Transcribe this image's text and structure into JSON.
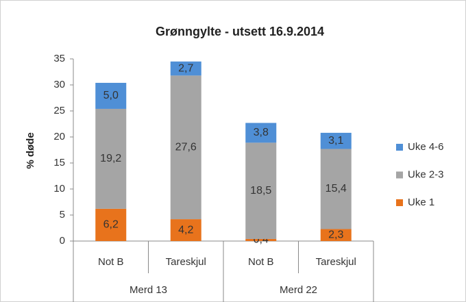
{
  "chart_data": {
    "type": "stacked-bar",
    "title": "Grønngylte - utsett 16.9.2014",
    "y_label": "% døde",
    "categories": [
      "Not B",
      "Tareskjul",
      "Not B",
      "Tareskjul"
    ],
    "groups": [
      "Merd 13",
      "Merd 22"
    ],
    "series": [
      {
        "name": "Uke 1",
        "color": "#e8731c",
        "values": [
          6.2,
          4.2,
          0.4,
          2.3
        ],
        "value_labels": [
          "6,2",
          "4,2",
          "0,4",
          "2,3"
        ]
      },
      {
        "name": "Uke 2-3",
        "color": "#a5a5a5",
        "values": [
          19.2,
          27.6,
          18.5,
          15.4
        ],
        "value_labels": [
          "19,2",
          "27,6",
          "18,5",
          "15,4"
        ]
      },
      {
        "name": "Uke 4-6",
        "color": "#4f8fd6",
        "values": [
          5.0,
          2.7,
          3.8,
          3.1
        ],
        "value_labels": [
          "5,0",
          "2,7",
          "3,8",
          "3,1"
        ]
      }
    ],
    "ylim": [
      0,
      35
    ],
    "yticks": [
      0,
      5,
      10,
      15,
      20,
      25,
      30,
      35
    ],
    "grid": false,
    "legend": "right"
  }
}
